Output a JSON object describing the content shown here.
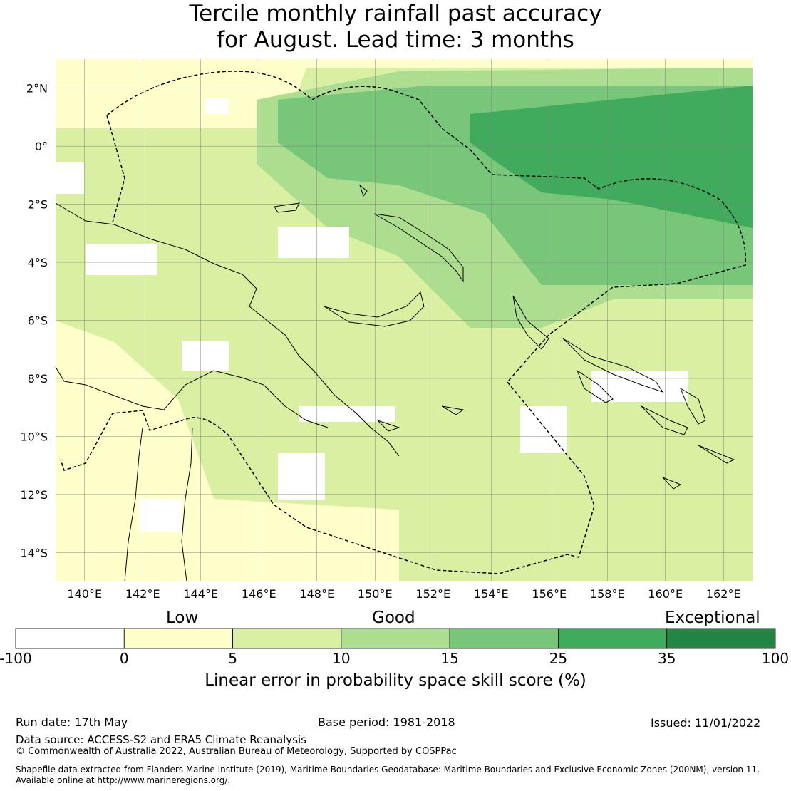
{
  "title": {
    "line1": "Tercile monthly rainfall past accuracy",
    "line2": "for August. Lead time: 3 months"
  },
  "map": {
    "lon_range": [
      139,
      163
    ],
    "lat_range": [
      -15,
      3
    ],
    "lon_ticks": [
      "140°E",
      "142°E",
      "144°E",
      "146°E",
      "148°E",
      "150°E",
      "152°E",
      "154°E",
      "156°E",
      "158°E",
      "160°E",
      "162°E"
    ],
    "lon_tick_values": [
      140,
      142,
      144,
      146,
      148,
      150,
      152,
      154,
      156,
      158,
      160,
      162
    ],
    "lat_ticks": [
      "2°N",
      "0°",
      "2°S",
      "4°S",
      "6°S",
      "8°S",
      "10°S",
      "12°S",
      "14°S"
    ],
    "lat_tick_values": [
      2,
      0,
      -2,
      -4,
      -6,
      -8,
      -10,
      -12,
      -14
    ],
    "grid": true,
    "boundary_style": "dashed",
    "coastline_color": "#000000"
  },
  "colorbar": {
    "category_labels": {
      "low": "Low",
      "good": "Good",
      "exceptional": "Exceptional"
    },
    "ticks": [
      "-100",
      "0",
      "5",
      "10",
      "15",
      "25",
      "35",
      "100"
    ],
    "colors": [
      "#ffffff",
      "#ffffcc",
      "#d9f0a3",
      "#addd8e",
      "#78c679",
      "#41ab5d",
      "#238443"
    ],
    "label": "Linear error in probability space skill score (%)"
  },
  "footer": {
    "run_date": "Run date: 17th May",
    "base_period": "Base period: 1981-2018",
    "issued": "Issued: 11/01/2022",
    "data_source": "Data source: ACCESS-S2 and ERA5 Climate Reanalysis",
    "copyright": "© Commonwealth of Australia 2022, Australian Bureau of Meteorology, Supported by COSPPac",
    "shapefile_line1": "Shapefile data extracted from Flanders Marine Institute (2019), Maritime Boundaries Geodatabase: Maritime Boundaries and Exclusive Economic Zones (200NM), version 11.",
    "shapefile_line2": "Available online at http://www.marineregions.org/."
  }
}
